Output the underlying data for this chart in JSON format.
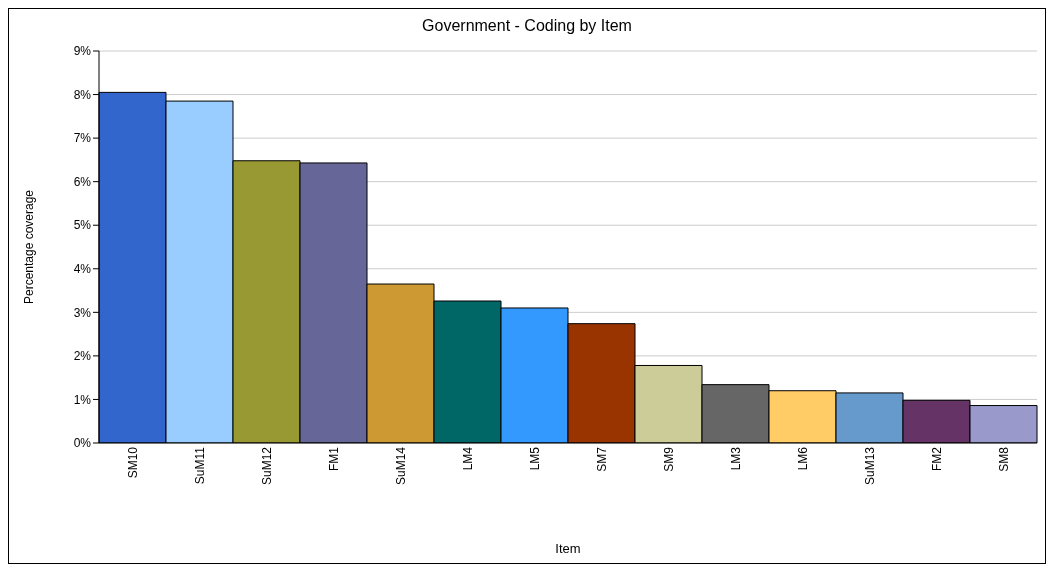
{
  "chart_data": {
    "type": "bar",
    "title": "Government - Coding by Item",
    "xlabel": "Item",
    "ylabel": "Percentage coverage",
    "categories": [
      "SM10",
      "SuM11",
      "SuM12",
      "FM1",
      "SuM14",
      "LM4",
      "LM5",
      "SM7",
      "SM9",
      "LM3",
      "LM6",
      "SuM13",
      "FM2",
      "SM8"
    ],
    "values": [
      8.05,
      7.85,
      6.48,
      6.43,
      3.65,
      3.26,
      3.1,
      2.74,
      1.78,
      1.34,
      1.2,
      1.15,
      0.98,
      0.86
    ],
    "colors": [
      "#3366cc",
      "#99ccff",
      "#999933",
      "#666699",
      "#cc9933",
      "#006666",
      "#3399ff",
      "#993300",
      "#cccc99",
      "#666666",
      "#ffcc66",
      "#6699cc",
      "#663366",
      "#9999cc"
    ],
    "ylim": [
      0,
      9
    ],
    "yticks": [
      {
        "value": 0,
        "label": "0%"
      },
      {
        "value": 1,
        "label": "1%"
      },
      {
        "value": 2,
        "label": "2%"
      },
      {
        "value": 3,
        "label": "3%"
      },
      {
        "value": 4,
        "label": "4%"
      },
      {
        "value": 5,
        "label": "5%"
      },
      {
        "value": 6,
        "label": "6%"
      },
      {
        "value": 7,
        "label": "7%"
      },
      {
        "value": 8,
        "label": "8%"
      },
      {
        "value": 9,
        "label": "9%"
      }
    ],
    "grid": "y",
    "legend": false
  }
}
